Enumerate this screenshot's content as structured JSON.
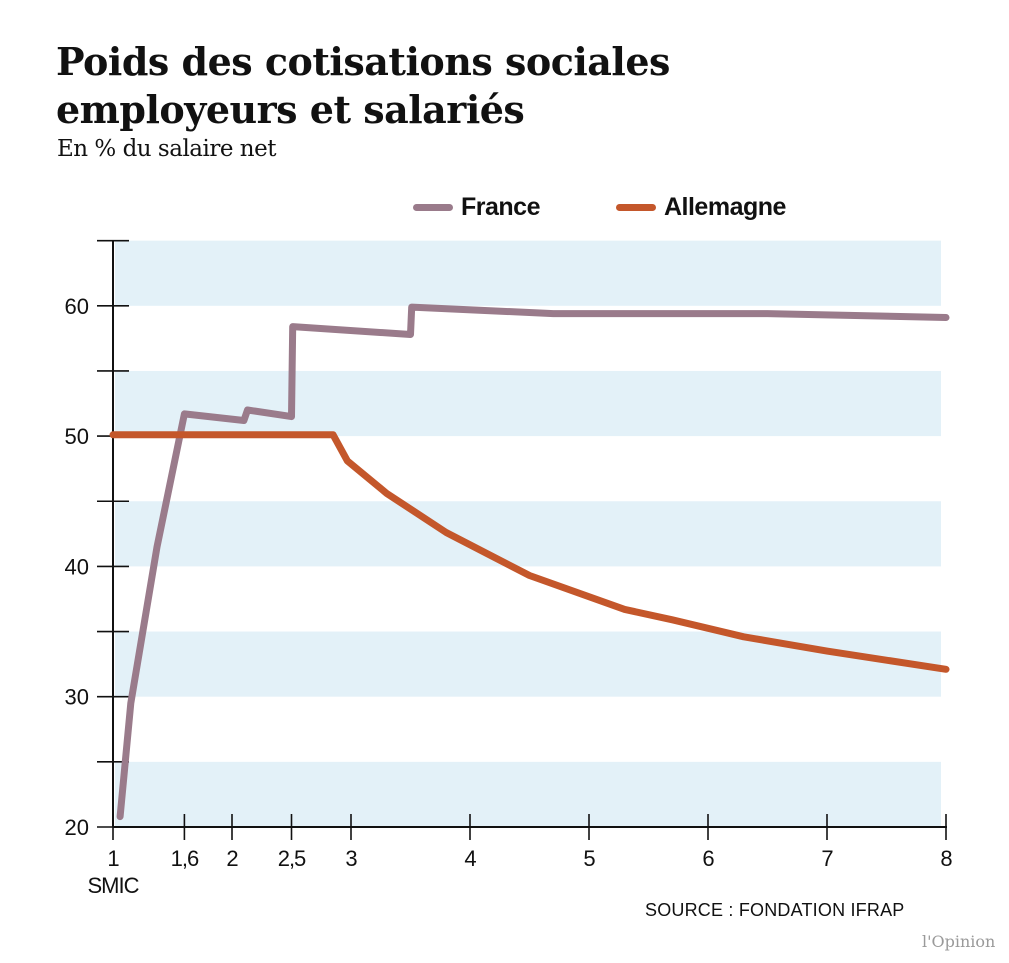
{
  "header": {
    "title_line1": "Poids des cotisations sociales",
    "title_line2": "employeurs et salariés",
    "subtitle": "En % du salaire net"
  },
  "footer": {
    "source": "SOURCE :  FONDATION IFRAP",
    "logo": "l'Opinion"
  },
  "chart_data": {
    "type": "line",
    "title": "Poids des cotisations sociales employeurs et salariés",
    "subtitle": "En % du salaire net",
    "xlabel": "SMIC",
    "ylabel": "",
    "xlim": [
      1,
      8
    ],
    "ylim": [
      20,
      65
    ],
    "x_ticks": [
      1,
      1.6,
      2,
      2.5,
      3,
      4,
      5,
      6,
      7,
      8
    ],
    "x_tick_labels": [
      "1",
      "1,6",
      "2",
      "2,5",
      "3",
      "4",
      "5",
      "6",
      "7",
      "8"
    ],
    "y_ticks_major": [
      20,
      30,
      40,
      50,
      60
    ],
    "y_ticks_minor": [
      25,
      35,
      45,
      55,
      65
    ],
    "y_tick_labels": [
      "20",
      "30",
      "40",
      "50",
      "60"
    ],
    "grid": "alternating horizontal bands",
    "band_color": "#e3f1f8",
    "legend_position": "top",
    "series": [
      {
        "name": "France",
        "color": "#9a7b8b",
        "points": [
          [
            1.06,
            20.8
          ],
          [
            1.15,
            29.5
          ],
          [
            1.37,
            41.5
          ],
          [
            1.6,
            51.7
          ],
          [
            2.1,
            51.2
          ],
          [
            2.13,
            52.0
          ],
          [
            2.5,
            51.5
          ],
          [
            2.51,
            58.4
          ],
          [
            3.5,
            57.8
          ],
          [
            3.51,
            59.9
          ],
          [
            4.7,
            59.4
          ],
          [
            6.5,
            59.4
          ],
          [
            8,
            59.1
          ]
        ]
      },
      {
        "name": "Allemagne",
        "color": "#c4572b",
        "points": [
          [
            1.0,
            50.1
          ],
          [
            2.85,
            50.1
          ],
          [
            2.97,
            48.1
          ],
          [
            3.3,
            45.6
          ],
          [
            3.8,
            42.6
          ],
          [
            4.5,
            39.3
          ],
          [
            5.3,
            36.7
          ],
          [
            5.7,
            35.9
          ],
          [
            6.3,
            34.6
          ],
          [
            7.0,
            33.5
          ],
          [
            8.0,
            32.1
          ]
        ]
      }
    ]
  }
}
